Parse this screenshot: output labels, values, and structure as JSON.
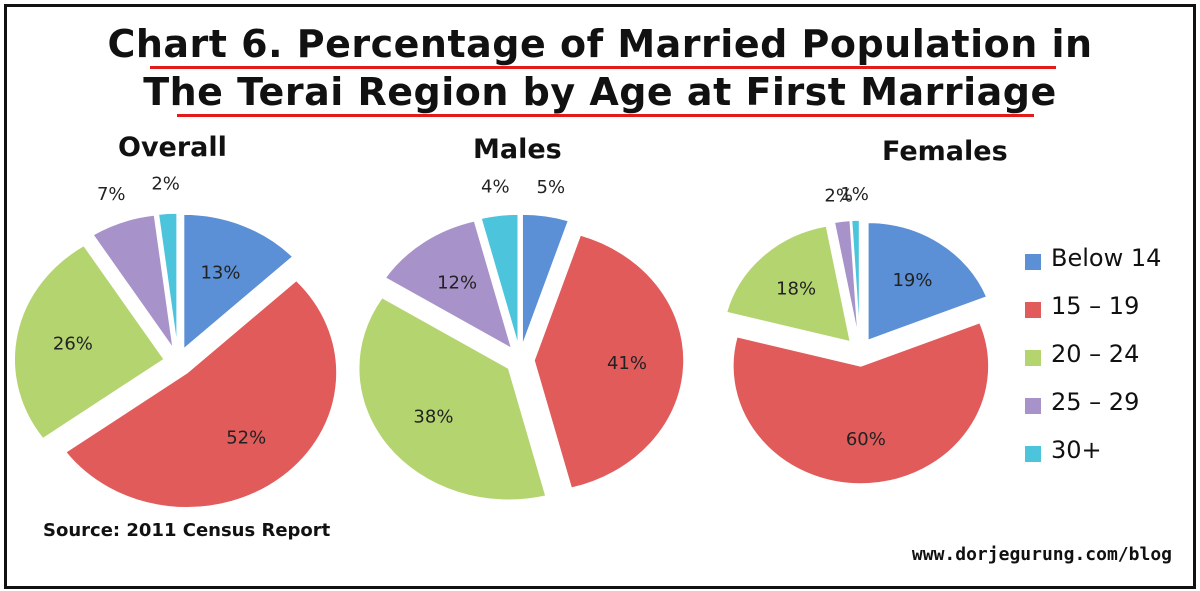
{
  "header": {
    "title_line1": "Chart 6. Percentage of Married Population in",
    "title_line2": "The Terai Region by Age at First Marriage"
  },
  "colors": {
    "below14": "#5b8fd6",
    "15_19": "#e15b5b",
    "20_24": "#b4d470",
    "25_29": "#a792c9",
    "30plus": "#4cc5dc",
    "title_underline": "#e31b1b"
  },
  "chart_data": [
    {
      "type": "pie",
      "title": "Overall",
      "categories": [
        "Below 14",
        "15 – 19",
        "20 – 24",
        "25 – 29",
        "30+"
      ],
      "values": [
        13,
        52,
        26,
        7,
        2
      ],
      "labels": [
        "13%",
        "52%",
        "26%",
        "7%",
        "2%"
      ]
    },
    {
      "type": "pie",
      "title": "Males",
      "categories": [
        "Below 14",
        "15 – 19",
        "20 – 24",
        "25 – 29",
        "30+"
      ],
      "values": [
        5,
        41,
        38,
        12,
        4
      ],
      "labels": [
        "5%",
        "41%",
        "38%",
        "12%",
        "4%"
      ]
    },
    {
      "type": "pie",
      "title": "Females",
      "categories": [
        "Below 14",
        "15 – 19",
        "20 – 24",
        "25 – 29",
        "30+"
      ],
      "values": [
        19,
        60,
        18,
        2,
        1
      ],
      "labels": [
        "19%",
        "60%",
        "18%",
        "2%",
        "1%"
      ]
    }
  ],
  "legend": {
    "placement": "right",
    "items": [
      "Below 14",
      "15 – 19",
      "20 – 24",
      "25 – 29",
      "30+"
    ]
  },
  "footer": {
    "source": "Source: 2011 Census Report",
    "url": "www.dorjegurung.com/blog"
  }
}
